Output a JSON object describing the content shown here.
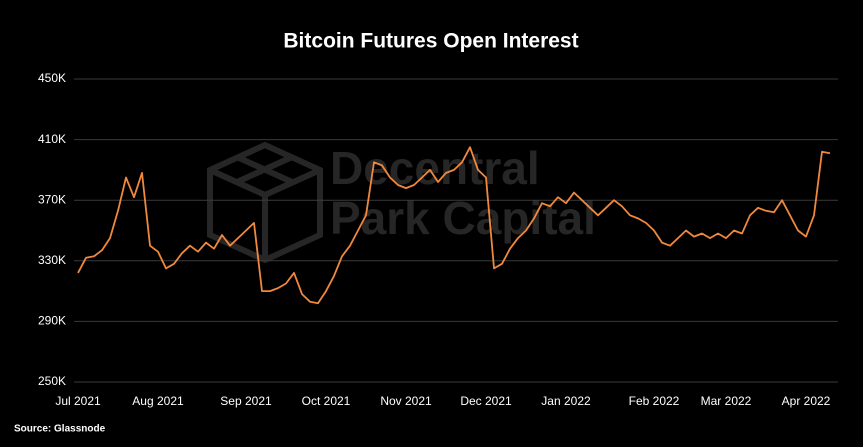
{
  "chart_data": {
    "type": "line",
    "title": "Bitcoin Futures Open Interest",
    "source": "Source: Glassnode",
    "watermark": [
      "Decentral",
      "Park Capital"
    ],
    "categories": [
      "Jul 2021",
      null,
      null,
      null,
      null,
      null,
      null,
      null,
      null,
      null,
      "Aug 2021",
      null,
      null,
      null,
      null,
      null,
      null,
      null,
      null,
      null,
      null,
      "Sep 2021",
      null,
      null,
      null,
      null,
      null,
      null,
      null,
      null,
      null,
      "Oct 2021",
      null,
      null,
      null,
      null,
      null,
      null,
      null,
      null,
      null,
      "Nov 2021",
      null,
      null,
      null,
      null,
      null,
      null,
      null,
      null,
      null,
      "Dec 2021",
      null,
      null,
      null,
      null,
      null,
      null,
      null,
      null,
      null,
      "Jan 2022",
      null,
      null,
      null,
      null,
      null,
      null,
      null,
      null,
      null,
      null,
      "Feb 2022",
      null,
      null,
      null,
      null,
      null,
      null,
      null,
      null,
      "Mar 2022",
      null,
      null,
      null,
      null,
      null,
      null,
      null,
      null,
      null,
      "Apr 2022",
      null,
      null,
      null
    ],
    "values": [
      322000,
      332000,
      333000,
      337000,
      345000,
      363000,
      385000,
      372000,
      388000,
      340000,
      336000,
      325000,
      328000,
      335000,
      340000,
      336000,
      342000,
      338000,
      347000,
      340000,
      345000,
      350000,
      355000,
      310000,
      310000,
      312000,
      315000,
      322000,
      308000,
      303000,
      302000,
      310000,
      320000,
      333000,
      340000,
      350000,
      360000,
      395000,
      393000,
      385000,
      380000,
      378000,
      380000,
      385000,
      390000,
      382000,
      388000,
      390000,
      395000,
      405000,
      390000,
      385000,
      325000,
      328000,
      338000,
      345000,
      350000,
      358000,
      368000,
      366000,
      372000,
      368000,
      375000,
      370000,
      365000,
      360000,
      365000,
      370000,
      366000,
      360000,
      358000,
      355000,
      350000,
      342000,
      340000,
      345000,
      350000,
      346000,
      348000,
      345000,
      348000,
      345000,
      350000,
      348000,
      360000,
      365000,
      363000,
      362000,
      370000,
      360000,
      350000,
      346000,
      360000,
      402000,
      401000
    ],
    "color": "#f0883e",
    "ylim": [
      250000,
      450000
    ],
    "yticks": [
      {
        "value": 250000,
        "label": "250K"
      },
      {
        "value": 290000,
        "label": "290K"
      },
      {
        "value": 330000,
        "label": "330K"
      },
      {
        "value": 370000,
        "label": "370K"
      },
      {
        "value": 410000,
        "label": "410K"
      },
      {
        "value": 450000,
        "label": "450K"
      }
    ],
    "grid": true
  }
}
